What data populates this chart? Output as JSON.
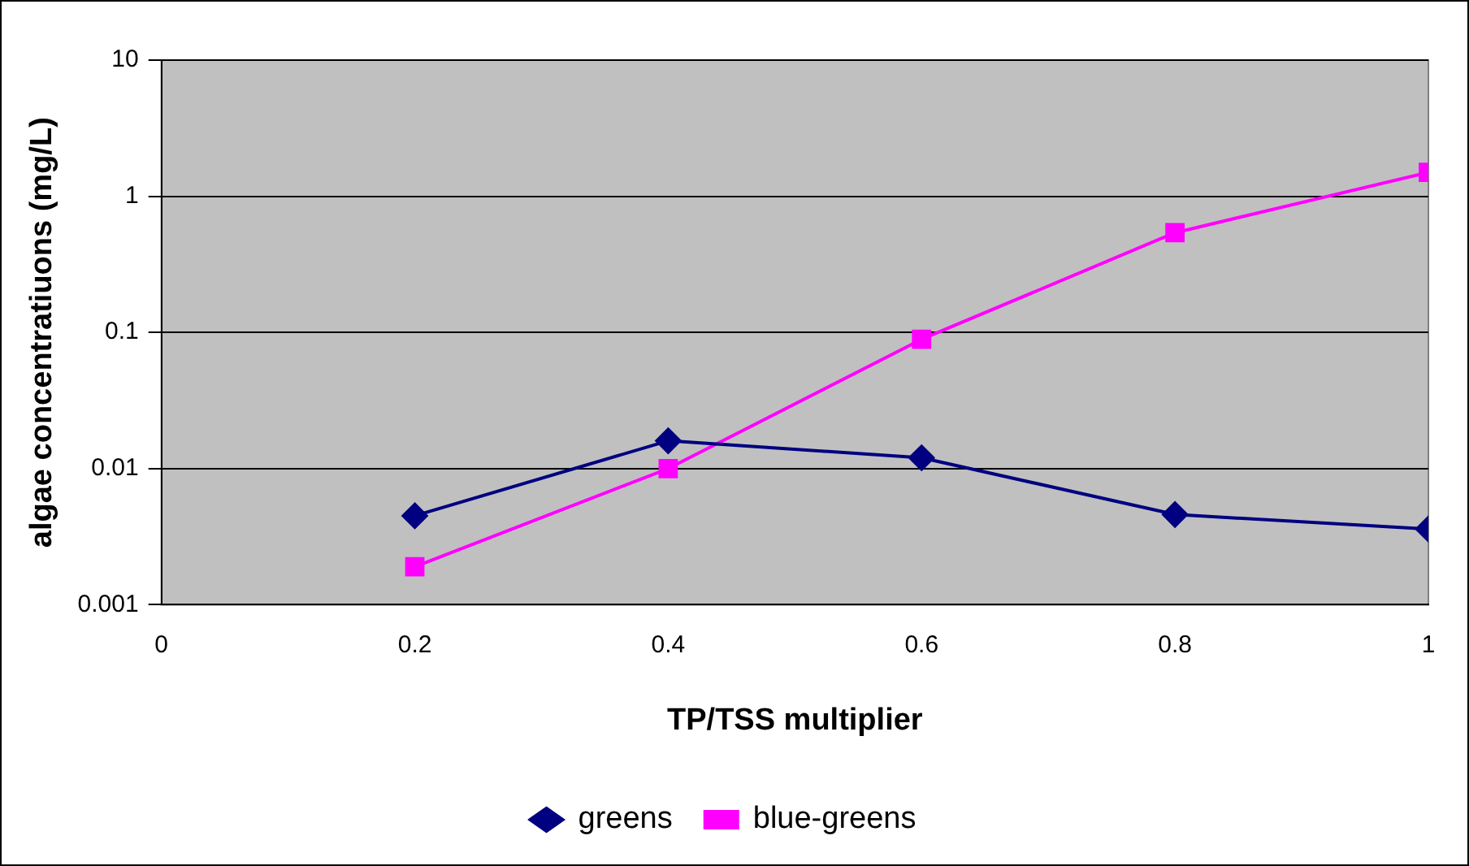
{
  "chart_data": {
    "type": "line",
    "xlabel": "TP/TSS multiplier",
    "ylabel": "algae concentratiuons (mg/L)",
    "x": [
      0.2,
      0.4,
      0.6,
      0.8,
      1
    ],
    "series": [
      {
        "name": "greens",
        "color": "#000080",
        "marker": "diamond",
        "values": [
          0.0045,
          0.016,
          0.012,
          0.0046,
          0.0036
        ]
      },
      {
        "name": "blue-greens",
        "color": "#ff00ff",
        "marker": "square",
        "values": [
          0.0019,
          0.01,
          0.089,
          0.54,
          1.5
        ]
      }
    ],
    "xlim": [
      0,
      1
    ],
    "xticks": [
      0,
      0.2,
      0.4,
      0.6,
      0.8,
      1
    ],
    "ylim": [
      0.001,
      10
    ],
    "yticks": [
      0.001,
      0.01,
      0.1,
      1,
      10
    ],
    "log": "y",
    "grid": "y",
    "legend": "bottom",
    "line_style": "solid"
  }
}
